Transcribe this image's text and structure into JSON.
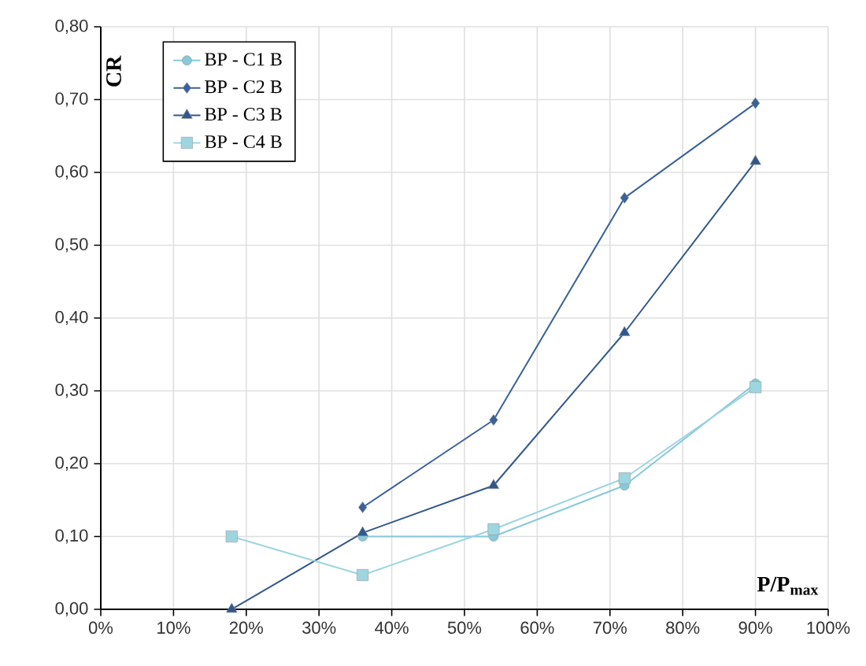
{
  "chart_data": {
    "type": "line",
    "xlabel": "P/P$_{max}$",
    "ylabel": "CR",
    "x": [
      18,
      36,
      54,
      72,
      90
    ],
    "xlim": [
      0,
      100
    ],
    "ylim": [
      0,
      0.8
    ],
    "xticks": [
      {
        "value": 0,
        "label": "0%"
      },
      {
        "value": 10,
        "label": "10%"
      },
      {
        "value": 20,
        "label": "20%"
      },
      {
        "value": 30,
        "label": "30%"
      },
      {
        "value": 40,
        "label": "40%"
      },
      {
        "value": 50,
        "label": "50%"
      },
      {
        "value": 60,
        "label": "60%"
      },
      {
        "value": 70,
        "label": "70%"
      },
      {
        "value": 80,
        "label": "80%"
      },
      {
        "value": 90,
        "label": "90%"
      },
      {
        "value": 100,
        "label": "100%"
      }
    ],
    "yticks": [
      {
        "value": 0,
        "label": "0,00"
      },
      {
        "value": 0.1,
        "label": "0,10"
      },
      {
        "value": 0.2,
        "label": "0,20"
      },
      {
        "value": 0.3,
        "label": "0,30"
      },
      {
        "value": 0.4,
        "label": "0,40"
      },
      {
        "value": 0.5,
        "label": "0,50"
      },
      {
        "value": 0.6,
        "label": "0,60"
      },
      {
        "value": 0.7,
        "label": "0,70"
      },
      {
        "value": 0.8,
        "label": "0,80"
      }
    ],
    "grid": true,
    "legend": "top left",
    "series": [
      {
        "name": "BP - C1 B",
        "color": "#86c9d8",
        "marker": "circle",
        "values": [
          null,
          0.1,
          0.1,
          0.17,
          0.31
        ]
      },
      {
        "name": "BP - C2 B",
        "color": "#3a6198",
        "marker": "diamond",
        "values": [
          null,
          0.14,
          0.26,
          0.565,
          0.695
        ]
      },
      {
        "name": "BP - C3 B",
        "color": "#31578c",
        "marker": "triangle",
        "values": [
          0.0,
          0.105,
          0.17,
          0.38,
          0.615
        ]
      },
      {
        "name": "BP - C4 B",
        "color": "#9dd5e0",
        "marker": "square",
        "values": [
          0.1,
          0.047,
          0.11,
          0.18,
          0.305
        ]
      }
    ]
  }
}
